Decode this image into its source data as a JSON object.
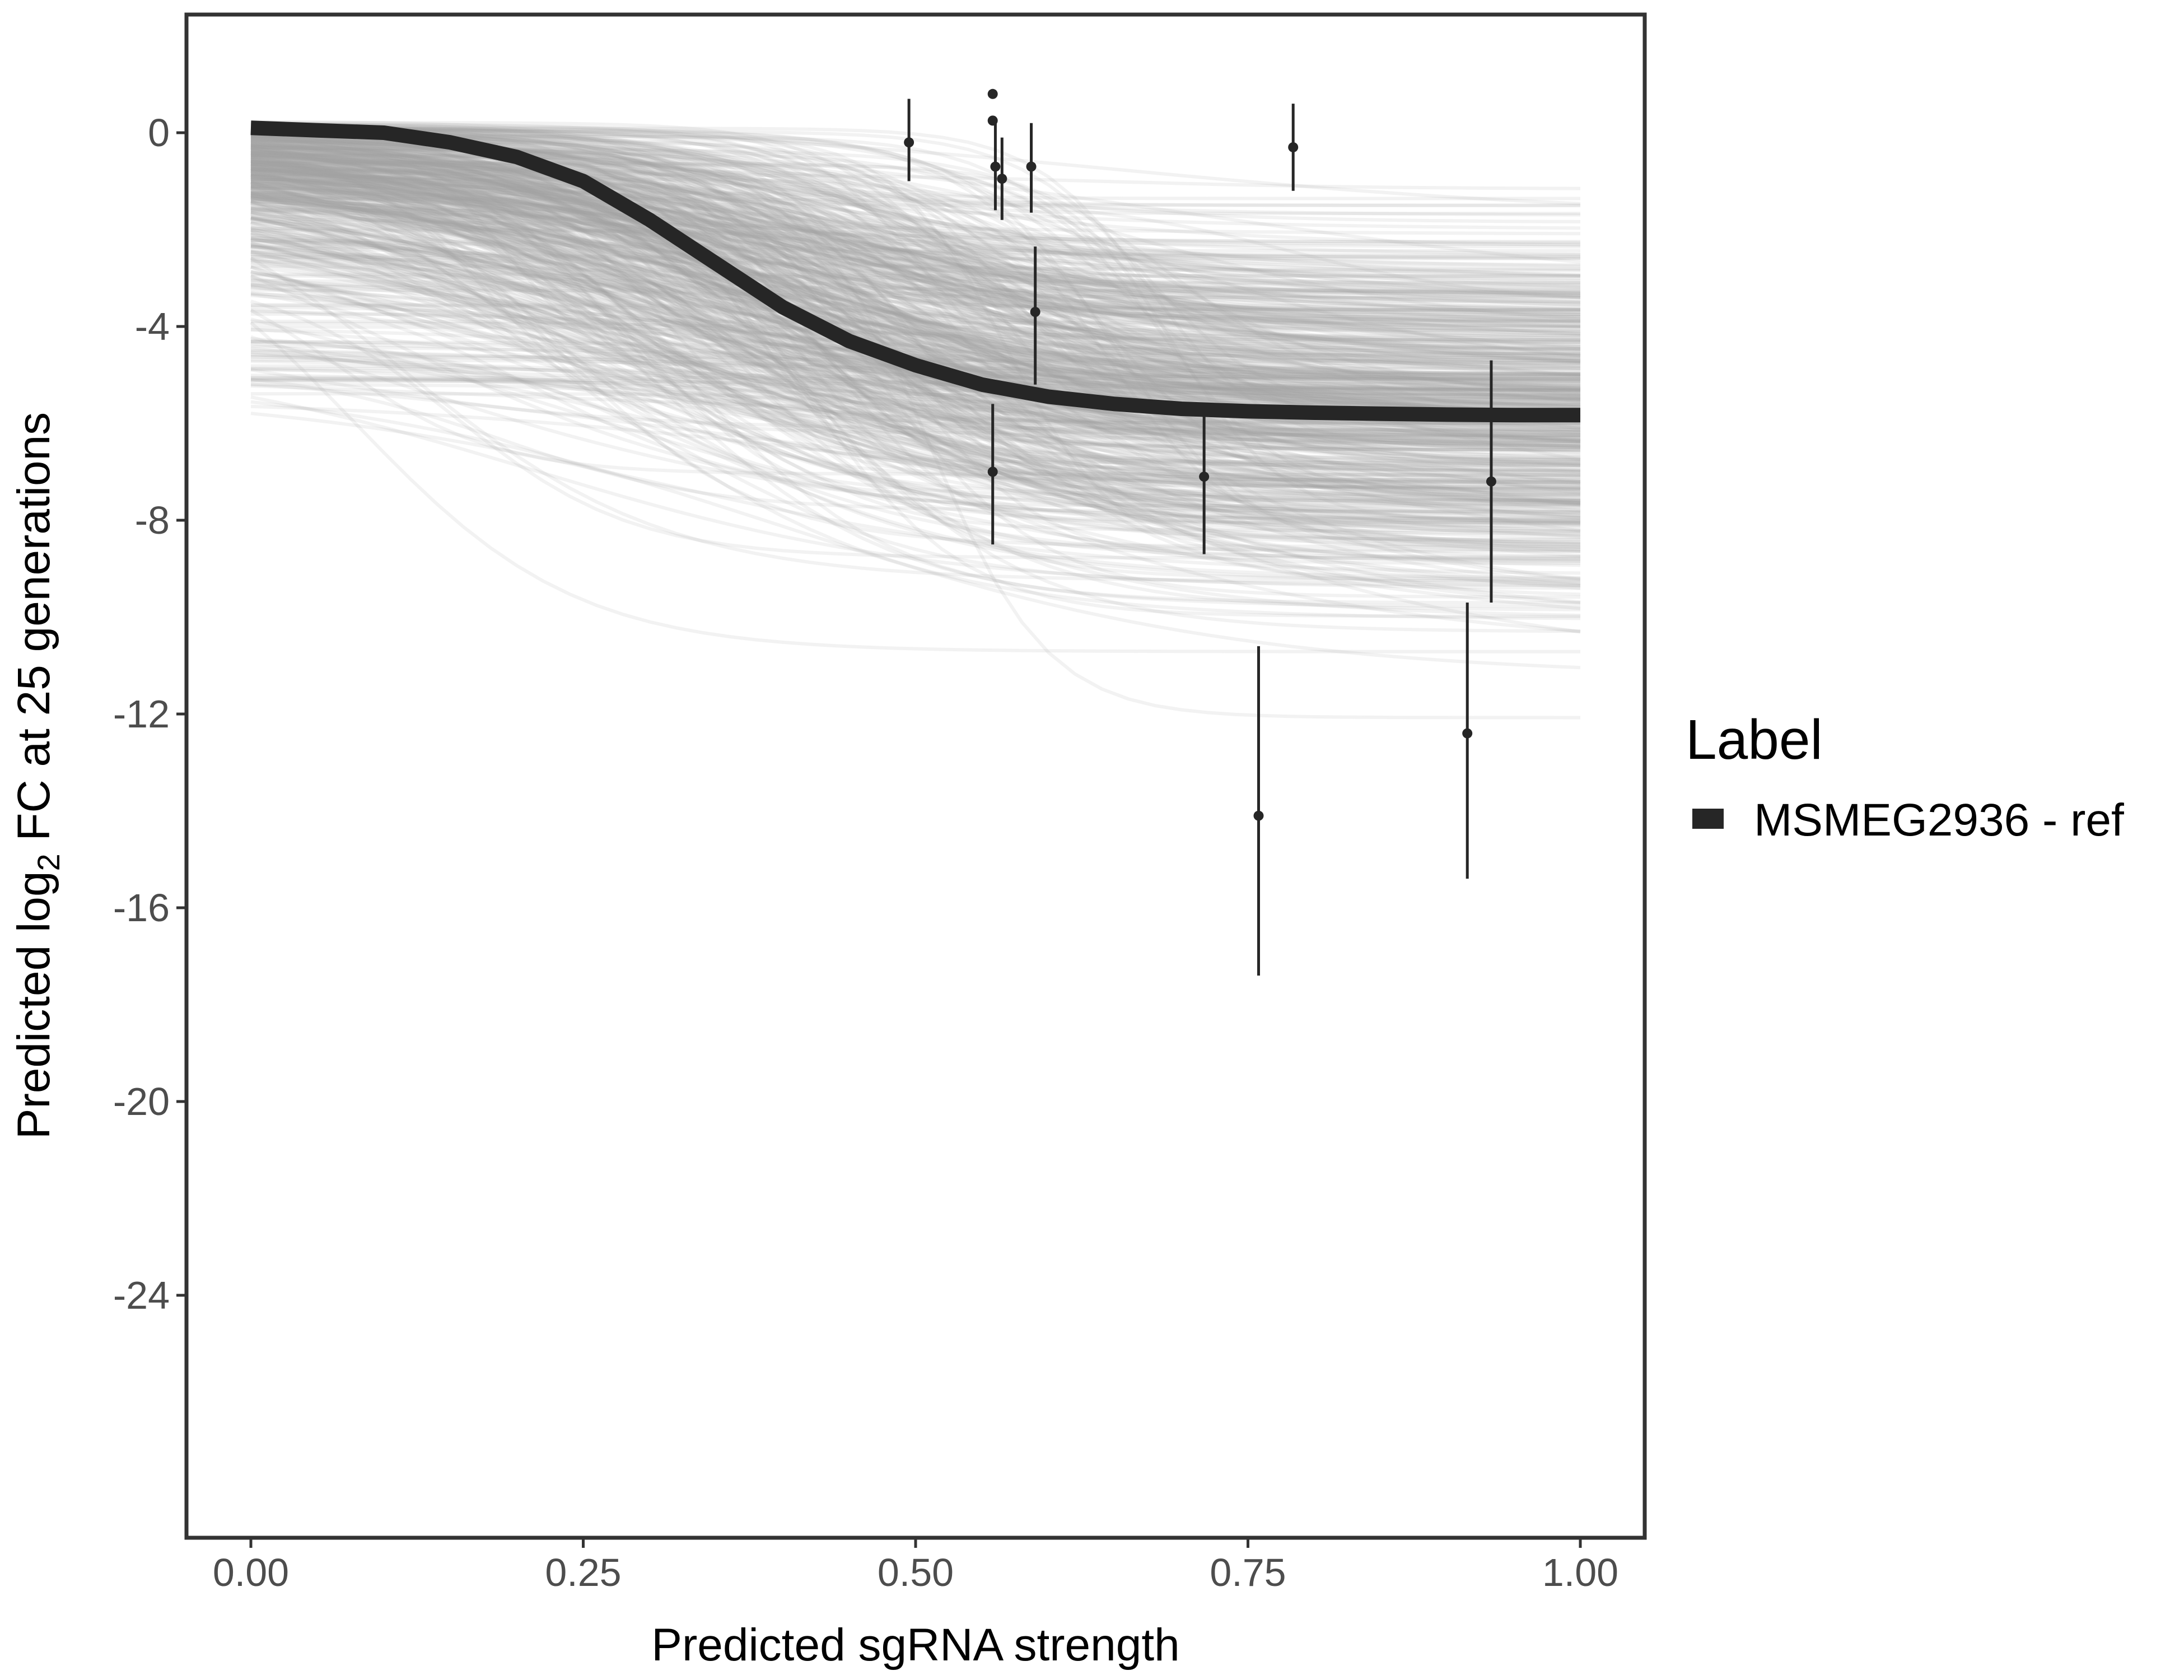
{
  "chart_data": {
    "type": "line",
    "xlabel": "Predicted sgRNA strength",
    "ylabel": {
      "prefix": "Predicted  log",
      "subscript": "2",
      "suffix": " FC at 25 generations"
    },
    "xlim": [
      -0.095,
      2.095
    ],
    "ylim": [
      -29.5,
      5.0
    ],
    "x_ticks": [
      0.0,
      0.25,
      0.5,
      0.75,
      1.0
    ],
    "x_tick_labels": [
      "0.00",
      "0.25",
      "0.50",
      "0.75",
      "1.00"
    ],
    "y_ticks": [
      0,
      -4,
      -8,
      -12,
      -16,
      -20,
      -24
    ],
    "y_tick_labels": [
      "0",
      "-4",
      "-8",
      "-12",
      "-16",
      "-20",
      "-24"
    ],
    "grid": false,
    "legend": {
      "title": "Label",
      "position": "right",
      "entries": [
        "MSMEG2936 - ref"
      ]
    },
    "series": [
      {
        "name": "MSMEG2936 - ref",
        "color": "#262626",
        "x": [
          0.0,
          0.05,
          0.1,
          0.15,
          0.2,
          0.25,
          0.3,
          0.35,
          0.4,
          0.45,
          0.5,
          0.55,
          0.6,
          0.65,
          0.7,
          0.75,
          0.8,
          0.85,
          0.9,
          0.95,
          1.0
        ],
        "y": [
          0.1,
          0.05,
          0.0,
          -0.2,
          -0.5,
          -1.0,
          -1.8,
          -2.7,
          -3.6,
          -4.3,
          -4.8,
          -5.2,
          -5.45,
          -5.6,
          -5.7,
          -5.75,
          -5.78,
          -5.8,
          -5.82,
          -5.83,
          -5.83
        ]
      }
    ],
    "posterior_draws": {
      "color": "#a6a6a6",
      "count": 600
    },
    "points": [
      {
        "x": 0.495,
        "y": -0.2,
        "lo": -1.0,
        "hi": 0.7
      },
      {
        "x": 0.558,
        "y": 0.8,
        "lo": 0.8,
        "hi": 0.8
      },
      {
        "x": 0.558,
        "y": 0.25,
        "lo": 0.25,
        "hi": 0.25
      },
      {
        "x": 0.56,
        "y": -0.7,
        "lo": -1.6,
        "hi": 0.2
      },
      {
        "x": 0.565,
        "y": -0.95,
        "lo": -1.8,
        "hi": -0.1
      },
      {
        "x": 0.587,
        "y": -0.7,
        "lo": -1.65,
        "hi": 0.2
      },
      {
        "x": 0.59,
        "y": -3.7,
        "lo": -5.2,
        "hi": -2.35
      },
      {
        "x": 0.558,
        "y": -7.0,
        "lo": -8.5,
        "hi": -5.6
      },
      {
        "x": 0.717,
        "y": -7.1,
        "lo": -8.7,
        "hi": -5.7
      },
      {
        "x": 0.758,
        "y": -14.1,
        "lo": -17.4,
        "hi": -10.6
      },
      {
        "x": 0.784,
        "y": -0.3,
        "lo": -1.2,
        "hi": 0.6
      },
      {
        "x": 0.915,
        "y": -12.4,
        "lo": -15.4,
        "hi": -9.7
      },
      {
        "x": 0.933,
        "y": -7.2,
        "lo": -9.7,
        "hi": -4.7
      }
    ]
  }
}
